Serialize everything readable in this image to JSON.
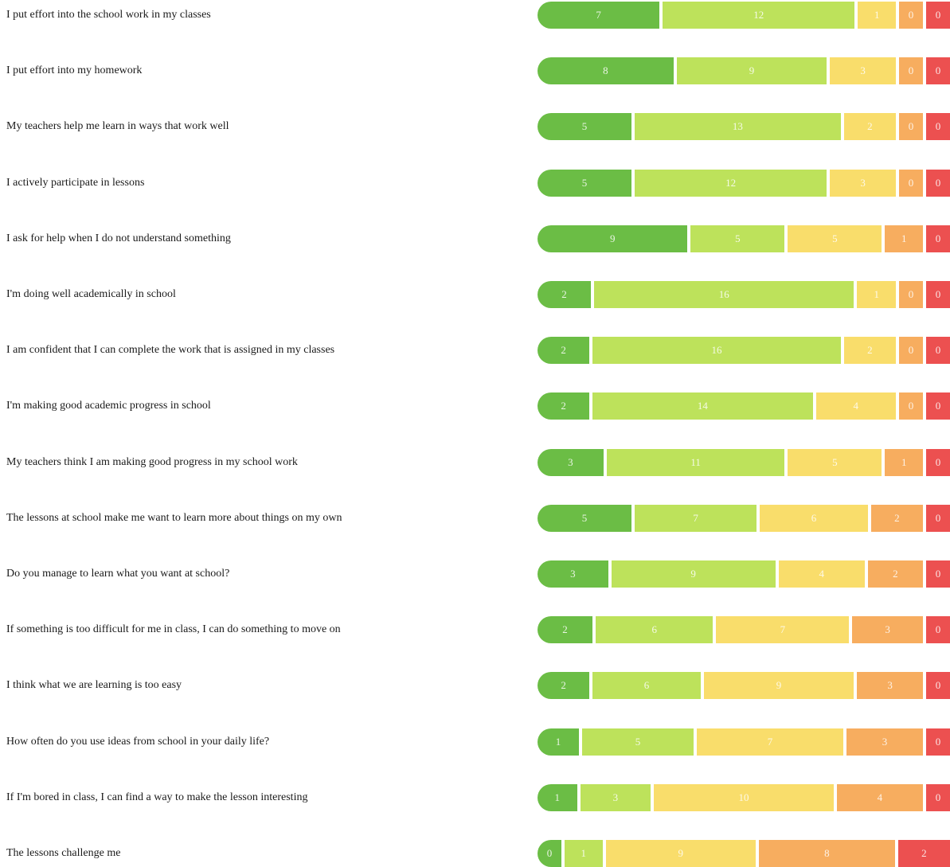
{
  "chart_data": {
    "type": "bar",
    "orientation": "horizontal",
    "stacked": true,
    "colors": [
      "#6bbd45",
      "#bde25b",
      "#f9dd6b",
      "#f7ad5f",
      "#ec5050"
    ],
    "rows": [
      {
        "label": "I put effort into the school work in my classes",
        "values": [
          7,
          12,
          1,
          0,
          0
        ]
      },
      {
        "label": "I put effort into my homework",
        "values": [
          8,
          9,
          3,
          0,
          0
        ]
      },
      {
        "label": "My teachers help me learn in ways that work well",
        "values": [
          5,
          13,
          2,
          0,
          0
        ]
      },
      {
        "label": "I actively participate in lessons",
        "values": [
          5,
          12,
          3,
          0,
          0
        ]
      },
      {
        "label": "I ask for help when I do not understand something",
        "values": [
          9,
          5,
          5,
          1,
          0
        ]
      },
      {
        "label": "I'm doing well academically in school",
        "values": [
          2,
          16,
          1,
          0,
          0
        ]
      },
      {
        "label": "I am confident that I can complete the work that is assigned in my classes",
        "values": [
          2,
          16,
          2,
          0,
          0
        ]
      },
      {
        "label": "I'm making good academic progress in school",
        "values": [
          2,
          14,
          4,
          0,
          0
        ]
      },
      {
        "label": "My teachers think I am making good progress in my school work",
        "values": [
          3,
          11,
          5,
          1,
          0
        ]
      },
      {
        "label": "The lessons at school make me want to learn more about things on my own",
        "values": [
          5,
          7,
          6,
          2,
          0
        ]
      },
      {
        "label": "Do you manage to learn what you want at school?",
        "values": [
          3,
          9,
          4,
          2,
          0
        ]
      },
      {
        "label": "If something is too difficult for me in class, I can do something to move on",
        "values": [
          2,
          6,
          7,
          3,
          0
        ]
      },
      {
        "label": "I think what we are learning is too easy",
        "values": [
          2,
          6,
          9,
          3,
          0
        ]
      },
      {
        "label": "How often do you use ideas from school in your daily life?",
        "values": [
          1,
          5,
          7,
          3,
          0
        ]
      },
      {
        "label": "If I'm bored in class, I can find a way to make the lesson interesting",
        "values": [
          1,
          3,
          10,
          4,
          0
        ]
      },
      {
        "label": "The lessons challenge me",
        "values": [
          0,
          1,
          9,
          8,
          2
        ]
      }
    ]
  }
}
